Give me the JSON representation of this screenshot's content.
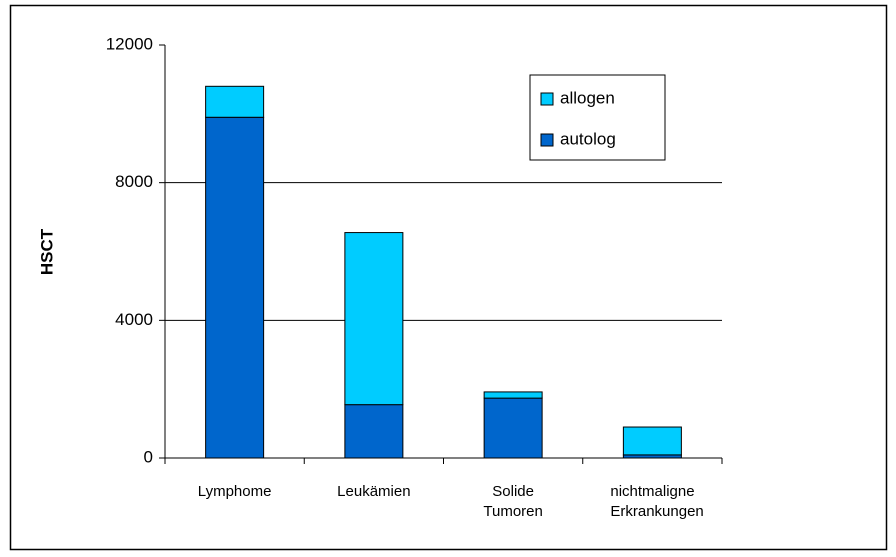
{
  "chart_data": {
    "type": "stacked_bar",
    "ylabel": "HSCT",
    "categories": [
      "Lymphome",
      "Leukämien",
      "Solide Tumoren",
      "nichtmaligne Erkrankungen"
    ],
    "series": [
      {
        "name": "autolog",
        "color": "#0066cc",
        "values": [
          9900,
          1550,
          1740,
          90
        ]
      },
      {
        "name": "allogen",
        "color": "#00ccff",
        "values": [
          900,
          5000,
          180,
          810
        ]
      }
    ],
    "ylim": [
      0,
      12000
    ],
    "yticks": [
      0,
      4000,
      8000,
      12000
    ],
    "grid": true,
    "legend": "upper right"
  }
}
